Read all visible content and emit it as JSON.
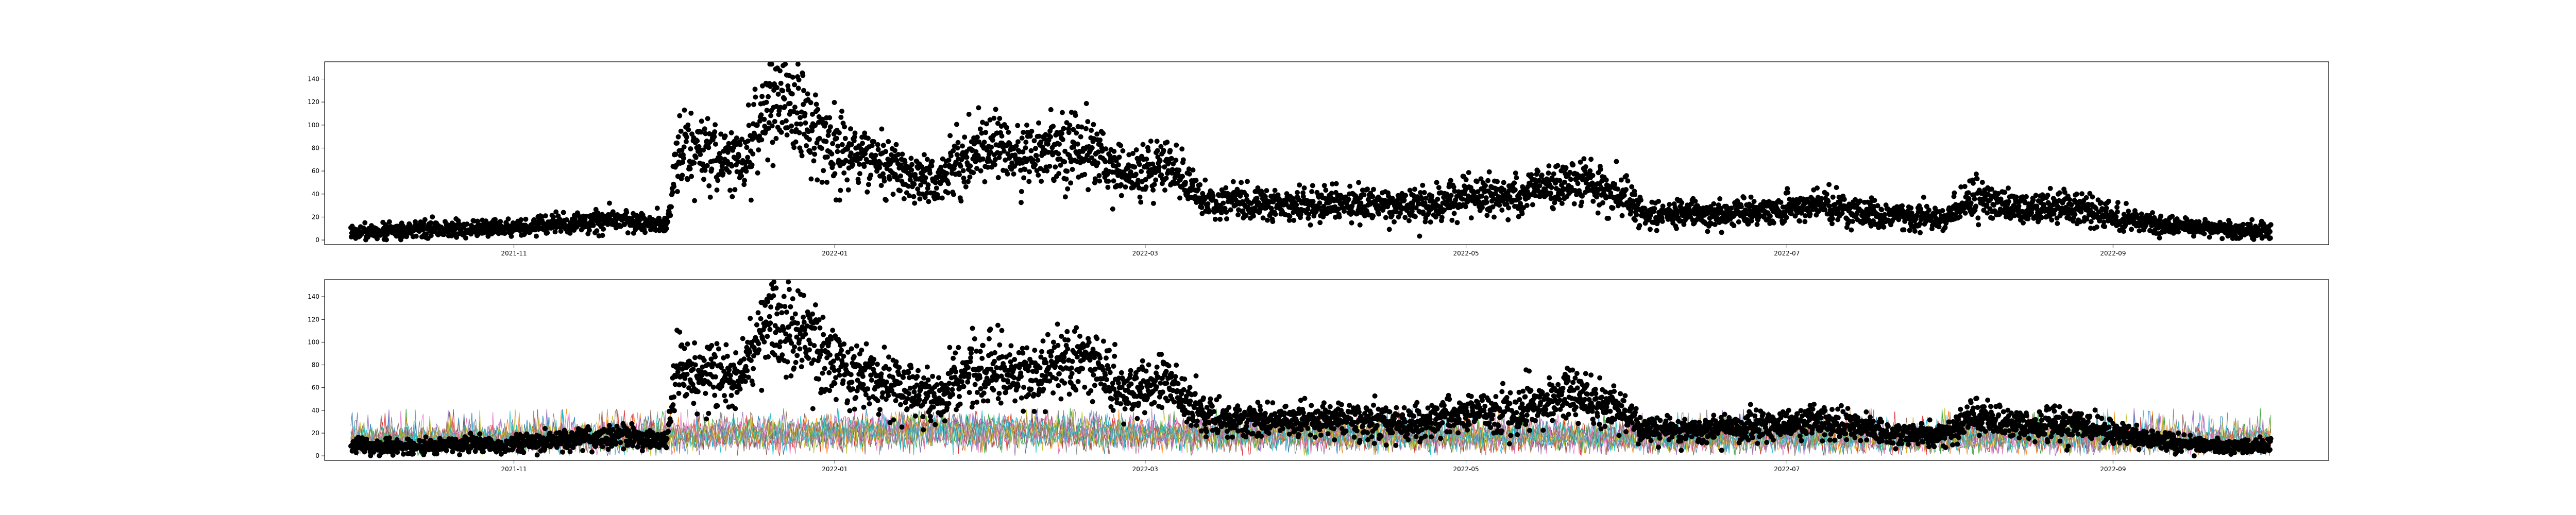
{
  "chart_data": [
    {
      "type": "scatter",
      "title": "",
      "xlabel": "",
      "ylabel": "",
      "x_range": [
        "2021-09-26",
        "2022-10-12"
      ],
      "ylim": [
        -4,
        155
      ],
      "x_tick_labels": [
        {
          "date": "2021-11-01",
          "label": "2021-11"
        },
        {
          "date": "2022-01-01",
          "label": "2022-01"
        },
        {
          "date": "2022-03-01",
          "label": "2022-03"
        },
        {
          "date": "2022-05-01",
          "label": "2022-05"
        },
        {
          "date": "2022-07-01",
          "label": "2022-07"
        },
        {
          "date": "2022-09-01",
          "label": "2022-09"
        }
      ],
      "y_ticks": [
        0,
        20,
        40,
        60,
        80,
        100,
        120,
        140
      ],
      "y_tick_labels": [
        "0",
        "20",
        "40",
        "60",
        "80",
        "100",
        "120",
        "140"
      ],
      "grid": false,
      "marker_color": "#000000",
      "series": [
        {
          "values": [
            {
              "x": "2021-10-01",
              "y": 7
            },
            {
              "x": "2021-10-15",
              "y": 9
            },
            {
              "x": "2021-10-29",
              "y": 10
            },
            {
              "x": "2021-11-12",
              "y": 14
            },
            {
              "x": "2021-11-22",
              "y": 18
            },
            {
              "x": "2021-11-30",
              "y": 12
            },
            {
              "x": "2021-12-02",
              "y": 78
            },
            {
              "x": "2021-12-08",
              "y": 74
            },
            {
              "x": "2021-12-14",
              "y": 68
            },
            {
              "x": "2021-12-20",
              "y": 118
            },
            {
              "x": "2021-12-25",
              "y": 112
            },
            {
              "x": "2022-01-01",
              "y": 80
            },
            {
              "x": "2022-01-10",
              "y": 65
            },
            {
              "x": "2022-01-20",
              "y": 50
            },
            {
              "x": "2022-01-28",
              "y": 78
            },
            {
              "x": "2022-02-08",
              "y": 72
            },
            {
              "x": "2022-02-18",
              "y": 86
            },
            {
              "x": "2022-02-25",
              "y": 55
            },
            {
              "x": "2022-03-05",
              "y": 65
            },
            {
              "x": "2022-03-12",
              "y": 35
            },
            {
              "x": "2022-03-25",
              "y": 30
            },
            {
              "x": "2022-04-08",
              "y": 32
            },
            {
              "x": "2022-04-20",
              "y": 28
            },
            {
              "x": "2022-05-01",
              "y": 37
            },
            {
              "x": "2022-05-10",
              "y": 38
            },
            {
              "x": "2022-05-20",
              "y": 52
            },
            {
              "x": "2022-05-31",
              "y": 40
            },
            {
              "x": "2022-06-03",
              "y": 24
            },
            {
              "x": "2022-06-15",
              "y": 22
            },
            {
              "x": "2022-06-28",
              "y": 26
            },
            {
              "x": "2022-07-08",
              "y": 32
            },
            {
              "x": "2022-07-20",
              "y": 20
            },
            {
              "x": "2022-07-31",
              "y": 18
            },
            {
              "x": "2022-08-05",
              "y": 38
            },
            {
              "x": "2022-08-15",
              "y": 25
            },
            {
              "x": "2022-08-22",
              "y": 30
            },
            {
              "x": "2022-09-01",
              "y": 20
            },
            {
              "x": "2022-09-12",
              "y": 12
            },
            {
              "x": "2022-09-25",
              "y": 8
            },
            {
              "x": "2022-10-01",
              "y": 9
            }
          ]
        }
      ]
    },
    {
      "type": "scatter",
      "title": "",
      "xlabel": "",
      "ylabel": "",
      "x_range": [
        "2021-09-26",
        "2022-10-12"
      ],
      "ylim": [
        -4,
        155
      ],
      "x_tick_labels": [
        {
          "date": "2021-11-01",
          "label": "2021-11"
        },
        {
          "date": "2022-01-01",
          "label": "2022-01"
        },
        {
          "date": "2022-03-01",
          "label": "2022-03"
        },
        {
          "date": "2022-05-01",
          "label": "2022-05"
        },
        {
          "date": "2022-07-01",
          "label": "2022-07"
        },
        {
          "date": "2022-09-01",
          "label": "2022-09"
        }
      ],
      "y_ticks": [
        0,
        20,
        40,
        60,
        80,
        100,
        120,
        140
      ],
      "y_tick_labels": [
        "0",
        "20",
        "40",
        "60",
        "80",
        "100",
        "120",
        "140"
      ],
      "grid": false,
      "marker_color": "#000000",
      "overlay_line_colors": [
        "#1f77b4",
        "#ff7f0e",
        "#2ca02c",
        "#d62728",
        "#9467bd",
        "#8c564b",
        "#e377c2",
        "#7f7f7f",
        "#bcbd22",
        "#17becf"
      ],
      "overlay_level": [
        {
          "x": "2021-10-01",
          "y": 18
        },
        {
          "x": "2021-12-01",
          "y": 22
        },
        {
          "x": "2022-01-15",
          "y": 28
        },
        {
          "x": "2022-03-01",
          "y": 24
        },
        {
          "x": "2022-06-01",
          "y": 20
        },
        {
          "x": "2022-10-01",
          "y": 18
        }
      ],
      "overlay_peak": 42,
      "series": [
        {
          "values": [
            {
              "x": "2021-10-01",
              "y": 7
            },
            {
              "x": "2021-10-15",
              "y": 9
            },
            {
              "x": "2021-10-29",
              "y": 10
            },
            {
              "x": "2021-11-12",
              "y": 14
            },
            {
              "x": "2021-11-22",
              "y": 18
            },
            {
              "x": "2021-11-30",
              "y": 12
            },
            {
              "x": "2021-12-02",
              "y": 78
            },
            {
              "x": "2021-12-08",
              "y": 74
            },
            {
              "x": "2021-12-14",
              "y": 68
            },
            {
              "x": "2021-12-20",
              "y": 118
            },
            {
              "x": "2021-12-25",
              "y": 112
            },
            {
              "x": "2022-01-01",
              "y": 80
            },
            {
              "x": "2022-01-10",
              "y": 65
            },
            {
              "x": "2022-01-20",
              "y": 50
            },
            {
              "x": "2022-01-28",
              "y": 78
            },
            {
              "x": "2022-02-08",
              "y": 72
            },
            {
              "x": "2022-02-18",
              "y": 86
            },
            {
              "x": "2022-02-25",
              "y": 55
            },
            {
              "x": "2022-03-05",
              "y": 65
            },
            {
              "x": "2022-03-12",
              "y": 35
            },
            {
              "x": "2022-03-25",
              "y": 30
            },
            {
              "x": "2022-04-08",
              "y": 32
            },
            {
              "x": "2022-04-20",
              "y": 28
            },
            {
              "x": "2022-05-01",
              "y": 37
            },
            {
              "x": "2022-05-10",
              "y": 38
            },
            {
              "x": "2022-05-20",
              "y": 52
            },
            {
              "x": "2022-05-31",
              "y": 40
            },
            {
              "x": "2022-06-03",
              "y": 24
            },
            {
              "x": "2022-06-15",
              "y": 22
            },
            {
              "x": "2022-06-28",
              "y": 26
            },
            {
              "x": "2022-07-08",
              "y": 32
            },
            {
              "x": "2022-07-20",
              "y": 20
            },
            {
              "x": "2022-07-31",
              "y": 18
            },
            {
              "x": "2022-08-05",
              "y": 38
            },
            {
              "x": "2022-08-15",
              "y": 25
            },
            {
              "x": "2022-08-22",
              "y": 30
            },
            {
              "x": "2022-09-01",
              "y": 20
            },
            {
              "x": "2022-09-12",
              "y": 12
            },
            {
              "x": "2022-09-25",
              "y": 8
            },
            {
              "x": "2022-10-01",
              "y": 9
            }
          ]
        }
      ]
    }
  ]
}
